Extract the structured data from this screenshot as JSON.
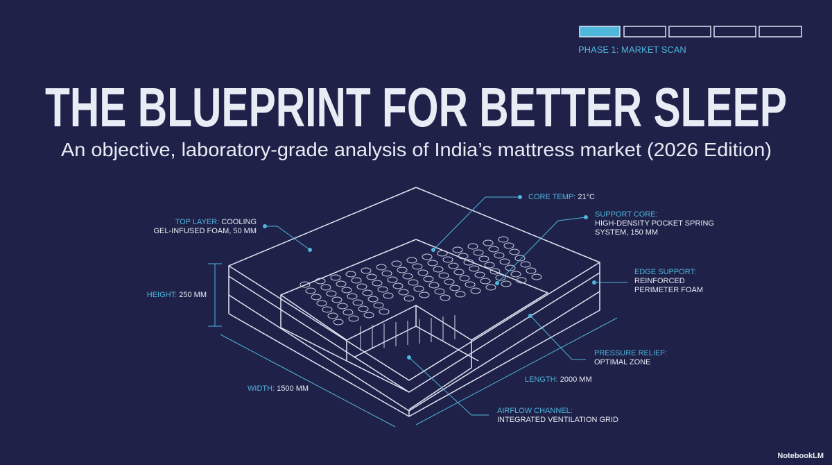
{
  "header": {
    "phase": "PHASE 1: MARKET SCAN",
    "title": "THE BLUEPRINT FOR BETTER SLEEP",
    "subtitle": "An objective, laboratory-grade analysis of India’s mattress market (2026 Edition)"
  },
  "callouts": [
    {
      "key": "TOP LAYER:",
      "lines": [
        "COOLING",
        "GEL-INFUSED FOAM, 50 MM"
      ]
    },
    {
      "key": "CORE TEMP:",
      "lines": [
        "21°C"
      ]
    },
    {
      "key": "SUPPORT CORE:",
      "lines": [
        "",
        "HIGH-DENSITY POCKET SPRING",
        "SYSTEM, 150 MM"
      ]
    },
    {
      "key": "EDGE SUPPORT:",
      "lines": [
        "",
        "REINFORCED",
        "PERIMETER FOAM"
      ]
    },
    {
      "key": "HEIGHT:",
      "lines": [
        "250 MM"
      ]
    },
    {
      "key": "PRESSURE RELIEF:",
      "lines": [
        "",
        "OPTIMAL ZONE"
      ]
    },
    {
      "key": "LENGTH:",
      "lines": [
        "2000 MM"
      ]
    },
    {
      "key": "WIDTH:",
      "lines": [
        "1500 MM"
      ]
    },
    {
      "key": "AIRFLOW CHANNEL:",
      "lines": [
        "",
        "INTEGRATED VENTILATION GRID"
      ]
    }
  ],
  "footer": {
    "brand": "NotebookLM"
  }
}
